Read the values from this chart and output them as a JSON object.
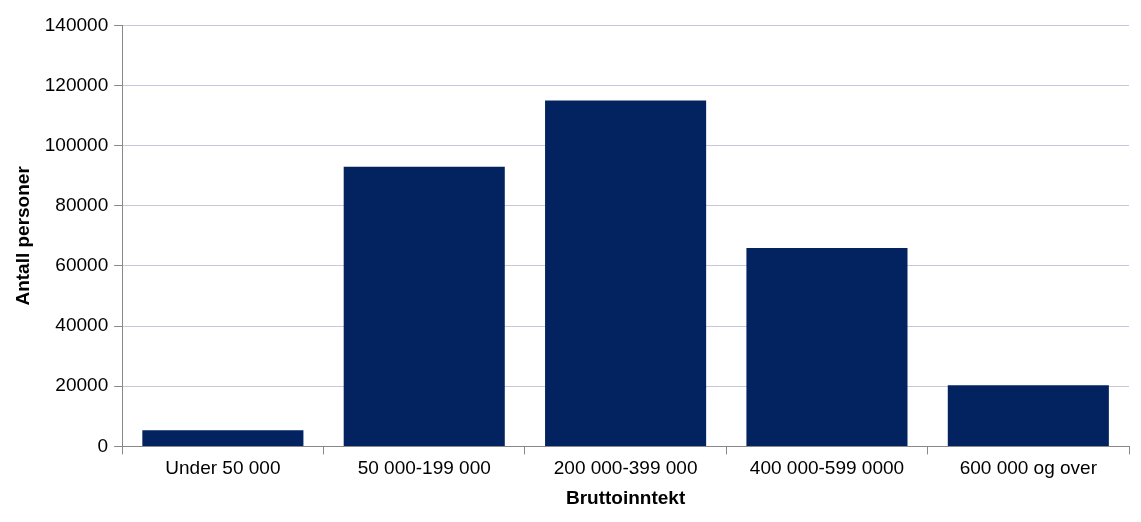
{
  "chart_data": {
    "type": "bar",
    "xlabel": "Bruttoinntekt",
    "ylabel": "Antall personer",
    "categories": [
      "Under 50 000",
      "50 000-199 000",
      "200 000-399 000",
      "400 000-599 0000",
      "600 000 og over"
    ],
    "values": [
      5400,
      93000,
      115000,
      66000,
      20300
    ],
    "color": "#022260",
    "ylim": [
      0,
      140000
    ],
    "yticks": [
      0,
      20000,
      40000,
      60000,
      80000,
      100000,
      120000,
      140000
    ],
    "grid": "y",
    "legend": false
  }
}
